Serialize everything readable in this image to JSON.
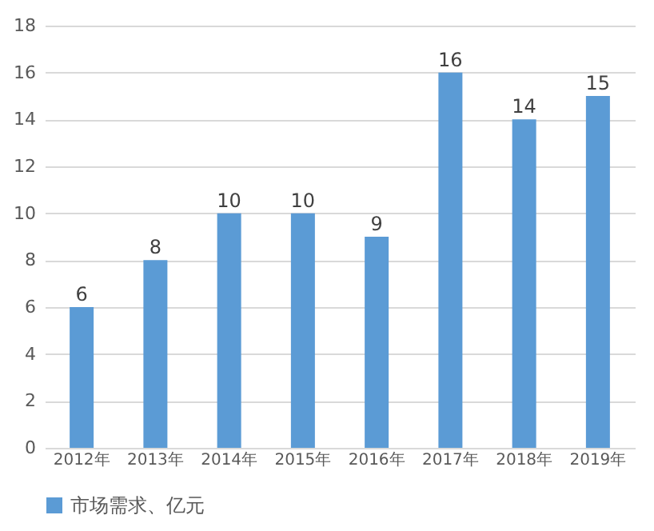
{
  "chart_data": {
    "type": "bar",
    "categories": [
      "2012年",
      "2013年",
      "2014年",
      "2015年",
      "2016年",
      "2017年",
      "2018年",
      "2019年"
    ],
    "series": [
      {
        "name": "市场需求、亿元",
        "color": "#5b9bd5",
        "values": [
          6,
          8,
          10,
          10,
          9,
          16,
          14,
          15
        ]
      }
    ],
    "ylim": [
      0,
      18
    ],
    "yticks": [
      0,
      2,
      4,
      6,
      8,
      10,
      12,
      14,
      16,
      18
    ],
    "grid": "y",
    "legend": "bottom",
    "data_labels": true
  }
}
